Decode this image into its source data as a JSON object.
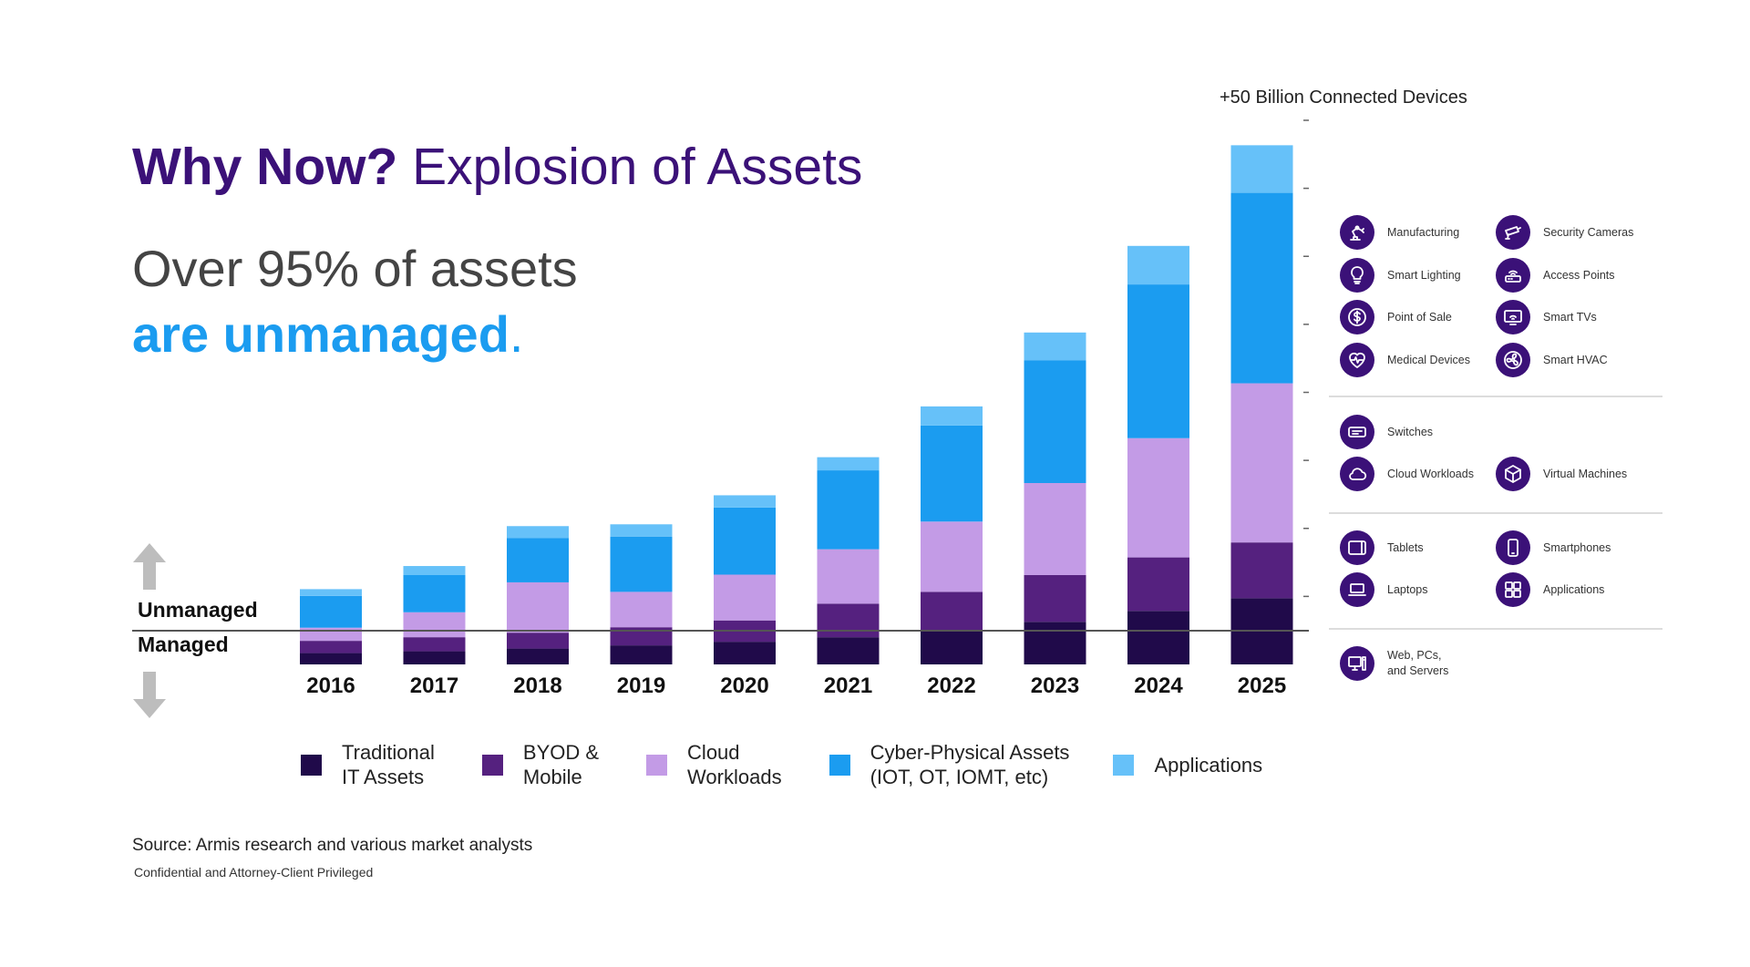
{
  "title": {
    "bold": "Why Now?",
    "rest": "Explosion of Assets"
  },
  "subtitle": {
    "line1": "Over 95% of assets",
    "line2": "are unmanaged",
    "punct": "."
  },
  "total_label": "+50 Billion Connected Devices",
  "unmanaged_label": "Unmanaged",
  "managed_label": "Managed",
  "chart_data": {
    "type": "bar",
    "stacked": true,
    "categories": [
      "2016",
      "2017",
      "2018",
      "2019",
      "2020",
      "2021",
      "2022",
      "2023",
      "2024",
      "2025"
    ],
    "series": [
      {
        "name": "Traditional IT Assets",
        "color": "#200a4a",
        "values": [
          50,
          58,
          70,
          84,
          100,
          120,
          150,
          188,
          236,
          292
        ]
      },
      {
        "name": "BYOD & Mobile",
        "color": "#55217f",
        "values": [
          54,
          62,
          70,
          80,
          94,
          148,
          170,
          206,
          236,
          246
        ]
      },
      {
        "name": "Cloud Workloads",
        "color": "#c39be6",
        "values": [
          58,
          110,
          222,
          156,
          202,
          240,
          310,
          406,
          526,
          702
        ]
      },
      {
        "name": "Cyber-Physical Assets (IOT, OT, IOMT, etc)",
        "color": "#1b9cf0",
        "values": [
          140,
          164,
          196,
          244,
          296,
          348,
          424,
          542,
          678,
          840
        ]
      },
      {
        "name": "Applications",
        "color": "#66c1f9",
        "values": [
          30,
          40,
          52,
          54,
          54,
          58,
          84,
          122,
          170,
          210
        ]
      }
    ],
    "managed_share": [
      0.58,
      0.53,
      0.47,
      0.43,
      0.35,
      0.3,
      0.23,
      0.17,
      0.12,
      0.1
    ],
    "ylim": [
      0,
      2400
    ],
    "grid": false,
    "legend_position": "bottom",
    "total_annotation": "+50 Billion Connected Devices"
  },
  "legend": [
    {
      "label": "Traditional\nIT Assets",
      "color": "#200a4a"
    },
    {
      "label": "BYOD &\nMobile",
      "color": "#55217f"
    },
    {
      "label": "Cloud\nWorkloads",
      "color": "#c39be6"
    },
    {
      "label": "Cyber-Physical Assets\n(IOT, OT, IOMT, etc)",
      "color": "#1b9cf0"
    },
    {
      "label": "Applications",
      "color": "#66c1f9"
    }
  ],
  "categories_panel": [
    {
      "label": "Manufacturing",
      "icon": "robot-arm-icon"
    },
    {
      "label": "Security Cameras",
      "icon": "security-camera-icon"
    },
    {
      "label": "Smart Lighting",
      "icon": "light-bulb-icon"
    },
    {
      "label": "Access Points",
      "icon": "router-icon"
    },
    {
      "label": "Point of Sale",
      "icon": "dollar-icon"
    },
    {
      "label": "Smart TVs",
      "icon": "smart-tv-icon"
    },
    {
      "label": "Medical Devices",
      "icon": "heartbeat-icon"
    },
    {
      "label": "Smart HVAC",
      "icon": "fan-icon"
    },
    {
      "label": "Switches",
      "icon": "switch-icon"
    },
    {
      "label": "Cloud Workloads",
      "icon": "cloud-icon"
    },
    {
      "label": "Virtual Machines",
      "icon": "cube-icon"
    },
    {
      "label": "Tablets",
      "icon": "tablet-icon"
    },
    {
      "label": "Smartphones",
      "icon": "smartphone-icon"
    },
    {
      "label": "Laptops",
      "icon": "laptop-icon"
    },
    {
      "label": "Applications",
      "icon": "app-grid-icon"
    },
    {
      "label": "Web, PCs,\nand Servers",
      "icon": "desktop-icon"
    }
  ],
  "source": "Source: Armis research and various market analysts",
  "confidential": "Confidential and Attorney-Client Privileged"
}
